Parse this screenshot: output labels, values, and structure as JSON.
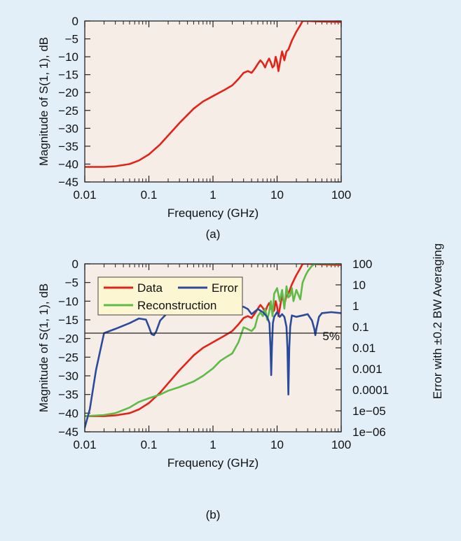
{
  "colors": {
    "page_bg": "#e3eff8",
    "plot_bg": "#f6ede6",
    "legend_bg": "#fcf7d2",
    "data": "#e2231a",
    "error": "#2a4a9c",
    "reconstruction": "#5dbb46",
    "reference": "#222222"
  },
  "chart_data": [
    {
      "type": "line",
      "panel_label": "(a)",
      "xlabel": "Frequency (GHz)",
      "ylabel": "Magnitude of S(1, 1), dB",
      "x_scale": "log",
      "xlim": [
        0.01,
        100
      ],
      "ylim": [
        -45,
        0
      ],
      "x_ticks": [
        {
          "value": 0.01,
          "label": "0.01"
        },
        {
          "value": 0.1,
          "label": "0.1"
        },
        {
          "value": 1,
          "label": "1"
        },
        {
          "value": 10,
          "label": "10"
        },
        {
          "value": 100,
          "label": "100"
        }
      ],
      "y_ticks": [
        {
          "value": 0,
          "label": "0"
        },
        {
          "value": -5,
          "label": "−5"
        },
        {
          "value": -10,
          "label": "−10"
        },
        {
          "value": -15,
          "label": "−15"
        },
        {
          "value": -20,
          "label": "−20"
        },
        {
          "value": -25,
          "label": "−25"
        },
        {
          "value": -30,
          "label": "−30"
        },
        {
          "value": -35,
          "label": "−35"
        },
        {
          "value": -40,
          "label": "−40"
        },
        {
          "value": -45,
          "label": "−45"
        }
      ],
      "grid": false,
      "series": [
        {
          "key": "data",
          "color": "#e2231a",
          "x": [
            0.01,
            0.02,
            0.03,
            0.05,
            0.07,
            0.1,
            0.15,
            0.2,
            0.3,
            0.5,
            0.7,
            1,
            1.5,
            2,
            2.5,
            3,
            3.5,
            4,
            4.5,
            5,
            5.5,
            6,
            6.5,
            7,
            7.5,
            8,
            8.5,
            9,
            9.5,
            10,
            10.5,
            11,
            11.5,
            12,
            13,
            14,
            15,
            17,
            20,
            23,
            25,
            30,
            40,
            60,
            100
          ],
          "y": [
            -40.8,
            -40.8,
            -40.6,
            -40,
            -39,
            -37.3,
            -34.5,
            -32,
            -28.5,
            -24.5,
            -22.5,
            -21,
            -19.3,
            -18,
            -16.2,
            -14.5,
            -14,
            -14.5,
            -13.3,
            -12,
            -11,
            -11.8,
            -13,
            -11.5,
            -10.5,
            -11.6,
            -13,
            -12.5,
            -10,
            -11.5,
            -14,
            -12,
            -10,
            -8.5,
            -11,
            -8.5,
            -8,
            -5.5,
            -3,
            -1.2,
            0,
            0,
            -0.1,
            -0.2,
            -0.3
          ]
        }
      ]
    },
    {
      "type": "line",
      "panel_label": "(b)",
      "xlabel": "Frequency (GHz)",
      "ylabel": "Magnitude of S(1, 1), dB",
      "y2label": "Error with ±0.2 BW Averaging",
      "x_scale": "log",
      "xlim": [
        0.01,
        100
      ],
      "ylim": [
        -45,
        0
      ],
      "y2_scale": "log",
      "y2lim": [
        1e-06,
        100
      ],
      "x_ticks": [
        {
          "value": 0.01,
          "label": "0.01"
        },
        {
          "value": 0.1,
          "label": "0.1"
        },
        {
          "value": 1,
          "label": "1"
        },
        {
          "value": 10,
          "label": "10"
        },
        {
          "value": 100,
          "label": "100"
        }
      ],
      "y_ticks": [
        {
          "value": 0,
          "label": "0"
        },
        {
          "value": -5,
          "label": "−5"
        },
        {
          "value": -10,
          "label": "−10"
        },
        {
          "value": -15,
          "label": "−15"
        },
        {
          "value": -20,
          "label": "−20"
        },
        {
          "value": -25,
          "label": "−25"
        },
        {
          "value": -30,
          "label": "−30"
        },
        {
          "value": -35,
          "label": "−35"
        },
        {
          "value": -40,
          "label": "−40"
        },
        {
          "value": -45,
          "label": "−45"
        }
      ],
      "y2_ticks": [
        {
          "value": 100,
          "label": "100"
        },
        {
          "value": 10,
          "label": "10"
        },
        {
          "value": 1,
          "label": "1"
        },
        {
          "value": 0.1,
          "label": "0.1"
        },
        {
          "value": 0.01,
          "label": "0.01"
        },
        {
          "value": 0.001,
          "label": "0.001"
        },
        {
          "value": 0.0001,
          "label": "0.0001"
        },
        {
          "value": 1e-05,
          "label": "1e−05"
        },
        {
          "value": 1e-06,
          "label": "1e−06"
        }
      ],
      "reference_line": {
        "y2": 0.05,
        "label": "5%"
      },
      "grid": false,
      "legend": {
        "placement": "top-left",
        "entries": [
          {
            "key": "data",
            "label": "Data"
          },
          {
            "key": "error",
            "label": "Error"
          },
          {
            "key": "reconstruction",
            "label": "Reconstruction"
          }
        ]
      },
      "series": [
        {
          "key": "data",
          "color": "#e2231a",
          "axis": "left",
          "x": [
            0.01,
            0.02,
            0.03,
            0.05,
            0.07,
            0.1,
            0.15,
            0.2,
            0.3,
            0.5,
            0.7,
            1,
            1.5,
            2,
            2.5,
            3,
            3.5,
            4,
            4.5,
            5,
            5.5,
            6,
            6.5,
            7,
            7.5,
            8,
            8.5,
            9,
            9.5,
            10,
            10.5,
            11,
            11.5,
            12,
            13,
            14,
            15,
            17,
            20,
            23,
            25,
            30,
            40,
            60,
            100
          ],
          "y": [
            -40.8,
            -40.8,
            -40.6,
            -40,
            -39,
            -37.3,
            -34.5,
            -32,
            -28.5,
            -24.5,
            -22.5,
            -21,
            -19.3,
            -18,
            -16.2,
            -14.5,
            -14,
            -14.5,
            -13.3,
            -12,
            -11,
            -11.8,
            -13,
            -11.5,
            -10.5,
            -11.6,
            -13,
            -12.5,
            -10,
            -11.5,
            -14,
            -12,
            -10,
            -8.5,
            -11,
            -8.5,
            -8,
            -5.5,
            -3,
            -1.2,
            0,
            0,
            -0.1,
            -0.2,
            -0.3
          ]
        },
        {
          "key": "reconstruction",
          "color": "#5dbb46",
          "axis": "left",
          "x": [
            0.01,
            0.02,
            0.03,
            0.05,
            0.07,
            0.1,
            0.15,
            0.2,
            0.3,
            0.5,
            0.7,
            1,
            1.3,
            1.6,
            2,
            2.5,
            3,
            3.5,
            4,
            4.5,
            5,
            5.5,
            6,
            6.5,
            7,
            7.5,
            8,
            8.5,
            9,
            10,
            11,
            12,
            13,
            14,
            15,
            16,
            17,
            18,
            20,
            23,
            25,
            28,
            30,
            35,
            40,
            50,
            70,
            100
          ],
          "y": [
            -40.8,
            -40.5,
            -40,
            -38.5,
            -37,
            -36,
            -35,
            -34,
            -33,
            -31.5,
            -30,
            -28,
            -26,
            -25,
            -24,
            -21,
            -17,
            -17.5,
            -18,
            -17,
            -14,
            -13,
            -14,
            -12,
            -15,
            -13,
            -10,
            -14,
            -8,
            -6.5,
            -10,
            -7,
            -12,
            -6,
            -9,
            -8.5,
            -6.5,
            -10,
            -7,
            -9.5,
            -5,
            -3,
            -2,
            -0.5,
            0,
            0,
            0,
            0
          ]
        },
        {
          "key": "error",
          "color": "#2a4a9c",
          "axis": "right",
          "x": [
            0.01,
            0.012,
            0.015,
            0.02,
            0.03,
            0.05,
            0.07,
            0.09,
            0.1,
            0.11,
            0.12,
            0.13,
            0.15,
            0.2,
            0.3,
            0.5,
            0.7,
            1,
            1.5,
            2,
            3,
            3.5,
            4,
            5,
            6,
            7,
            7.6,
            7.9,
            8.1,
            8.3,
            8.6,
            9,
            10,
            11,
            12,
            13,
            14,
            14.5,
            15,
            15.5,
            16,
            17,
            20,
            25,
            30,
            35,
            38,
            39.5,
            41,
            45,
            50,
            70,
            100
          ],
          "y": [
            1.6e-06,
            1.2e-05,
            0.0009,
            0.05,
            0.08,
            0.15,
            0.25,
            0.22,
            0.1,
            0.045,
            0.04,
            0.06,
            0.2,
            0.5,
            0.7,
            0.9,
            1,
            1,
            1,
            1,
            0.9,
            0.7,
            0.4,
            0.7,
            0.5,
            0.3,
            0.15,
            0.01,
            0.0005,
            0.01,
            0.15,
            0.3,
            0.5,
            0.3,
            0.4,
            0.3,
            0.1,
            0.01,
            6e-05,
            0.01,
            0.1,
            0.35,
            0.3,
            0.35,
            0.4,
            0.2,
            0.08,
            0.04,
            0.08,
            0.3,
            0.45,
            0.5,
            0.45
          ]
        }
      ]
    }
  ]
}
